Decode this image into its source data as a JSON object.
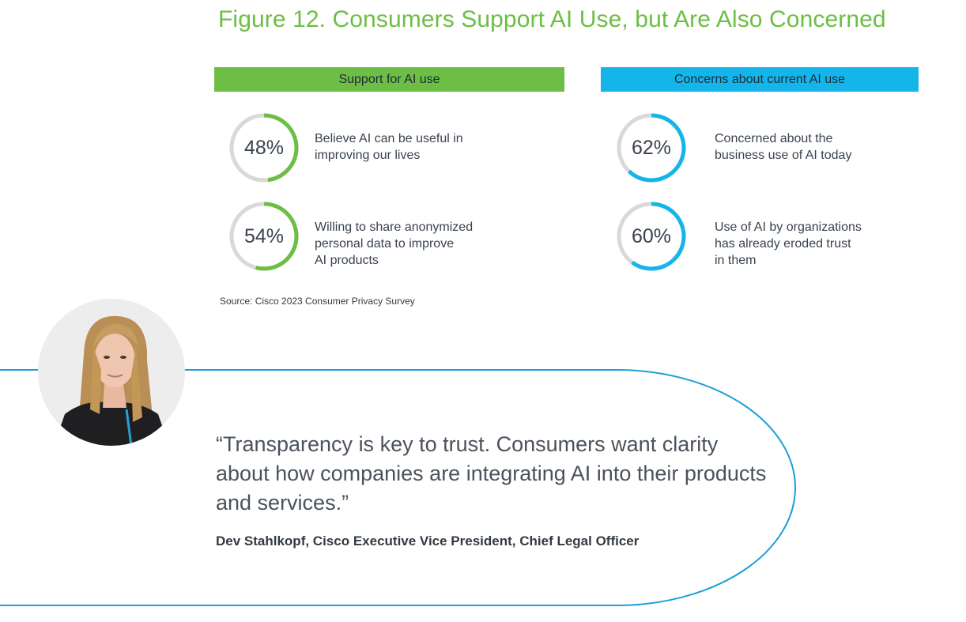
{
  "title": "Figure 12. Consumers Support AI Use, but Are Also Concerned",
  "colors": {
    "green": "#6cbe45",
    "blue": "#13b5ea",
    "track": "#d9d9d9",
    "line": "#1ba0d7"
  },
  "chart_data": [
    {
      "type": "donut",
      "title": "Support for AI use",
      "items": [
        {
          "value": 48,
          "label": "48%",
          "description": "Believe AI can be useful in\nimproving our lives"
        },
        {
          "value": 54,
          "label": "54%",
          "description": "Willing to share anonymized\npersonal data to improve\nAI products"
        }
      ]
    },
    {
      "type": "donut",
      "title": "Concerns about current AI use",
      "items": [
        {
          "value": 62,
          "label": "62%",
          "description": "Concerned about the\nbusiness use of AI today"
        },
        {
          "value": 60,
          "label": "60%",
          "description": "Use of AI by organizations\nhas already eroded trust\nin them"
        }
      ]
    }
  ],
  "source": "Source: Cisco 2023 Consumer Privacy Survey",
  "quote": {
    "text": "“Transparency is key to trust. Consumers want clarity about how companies are integrating AI into their products and services.”",
    "attribution": "Dev Stahlkopf, Cisco Executive Vice President, Chief Legal Officer"
  }
}
